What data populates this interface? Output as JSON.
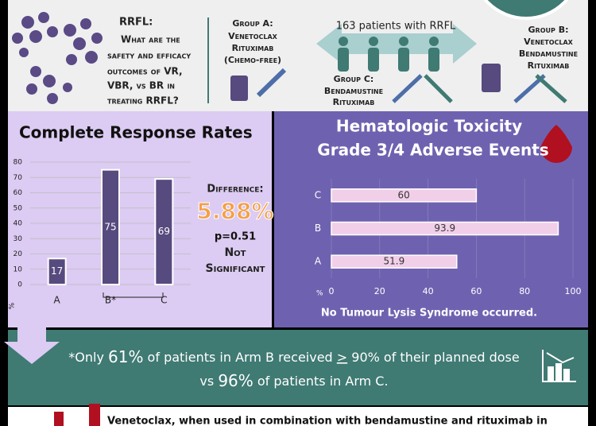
{
  "header": {
    "label": "RRFL:",
    "question": [
      "What are the",
      "safety and efficacy",
      "outcomes of VR,",
      "VBR, vs BR in",
      "treating RRFL?"
    ],
    "group_a": {
      "title": "Group A:",
      "lines": [
        "Venetoclax",
        "Rituximab",
        "(Chemo-free)"
      ]
    },
    "patients": "163 patients with RRFL",
    "group_c": {
      "title": "Group C:",
      "lines": [
        "Bendamustine",
        "Rituximab"
      ]
    },
    "group_b": {
      "title": "Group B:",
      "lines": [
        "Venetoclax",
        "Bendamustine",
        "Rituximab"
      ]
    }
  },
  "chart_data": [
    {
      "type": "bar",
      "title": "Complete Response Rates",
      "categories": [
        "A",
        "B*",
        "C"
      ],
      "values": [
        17,
        75,
        69
      ],
      "color": "#574a7e",
      "ylim": [
        0,
        80
      ],
      "yticks": [
        0,
        10,
        20,
        30,
        40,
        50,
        60,
        70,
        80
      ],
      "ylabel": "%",
      "grid": true
    },
    {
      "type": "hbar",
      "title": "Hematologic Toxicity",
      "subtitle": "Grade 3/4 Adverse Events",
      "categories": [
        "A",
        "B",
        "C"
      ],
      "values": [
        51.9,
        93.9,
        60
      ],
      "color": "#f2cfe9",
      "xlim": [
        0,
        100
      ],
      "xticks": [
        0,
        20,
        40,
        60,
        80,
        100
      ],
      "xlabel": "%",
      "grid": true,
      "note": "No Tumour Lysis Syndrome occurred."
    }
  ],
  "difference": {
    "label": "Difference:",
    "value": "5.88%",
    "p": "p=0.51",
    "verdict": [
      "Not",
      "Significant"
    ]
  },
  "footnote": [
    "*Only ",
    "61%",
    " of patients in Arm B received ",
    ">",
    " 90% of their planned dose",
    "vs ",
    "96%",
    " of patients in Arm C."
  ],
  "conclusion": "Venetoclax, when used in combination with bendamustine and rituximab in"
}
